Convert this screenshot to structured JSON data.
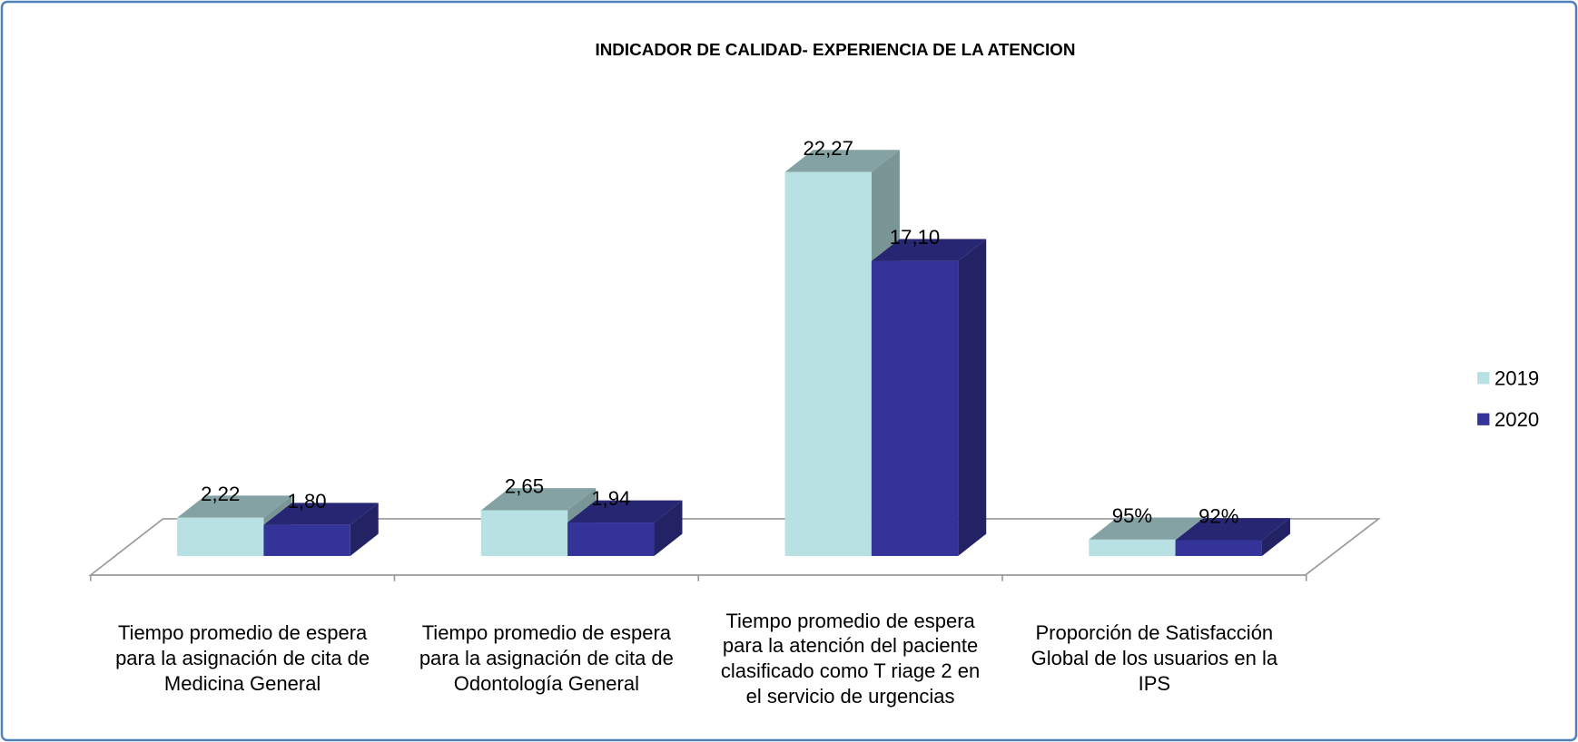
{
  "chart_data": {
    "type": "bar3d",
    "title": "INDICADOR DE CALIDAD- EXPERIENCIA DE LA ATENCION",
    "categories": [
      "Tiempo promedio de espera para la asignación de cita de Medicina General",
      "Tiempo promedio de espera para la asignación de cita de Odontología General",
      "Tiempo promedio de espera para la atención del paciente clasificado como T riage 2 en el servicio de urgencias",
      "Proporción de Satisfacción Global de los usuarios en la IPS"
    ],
    "series": [
      {
        "name": "2019",
        "color": "#b7e1e2",
        "values": [
          2.22,
          2.65,
          22.27,
          0.95
        ],
        "value_labels": [
          "2,22",
          "2,65",
          "22,27",
          "95%"
        ]
      },
      {
        "name": "2020",
        "color": "#333399",
        "values": [
          1.8,
          1.94,
          17.1,
          0.92
        ],
        "value_labels": [
          "1,80",
          "1,94",
          "17,10",
          "92%"
        ]
      }
    ],
    "legend": "right"
  }
}
